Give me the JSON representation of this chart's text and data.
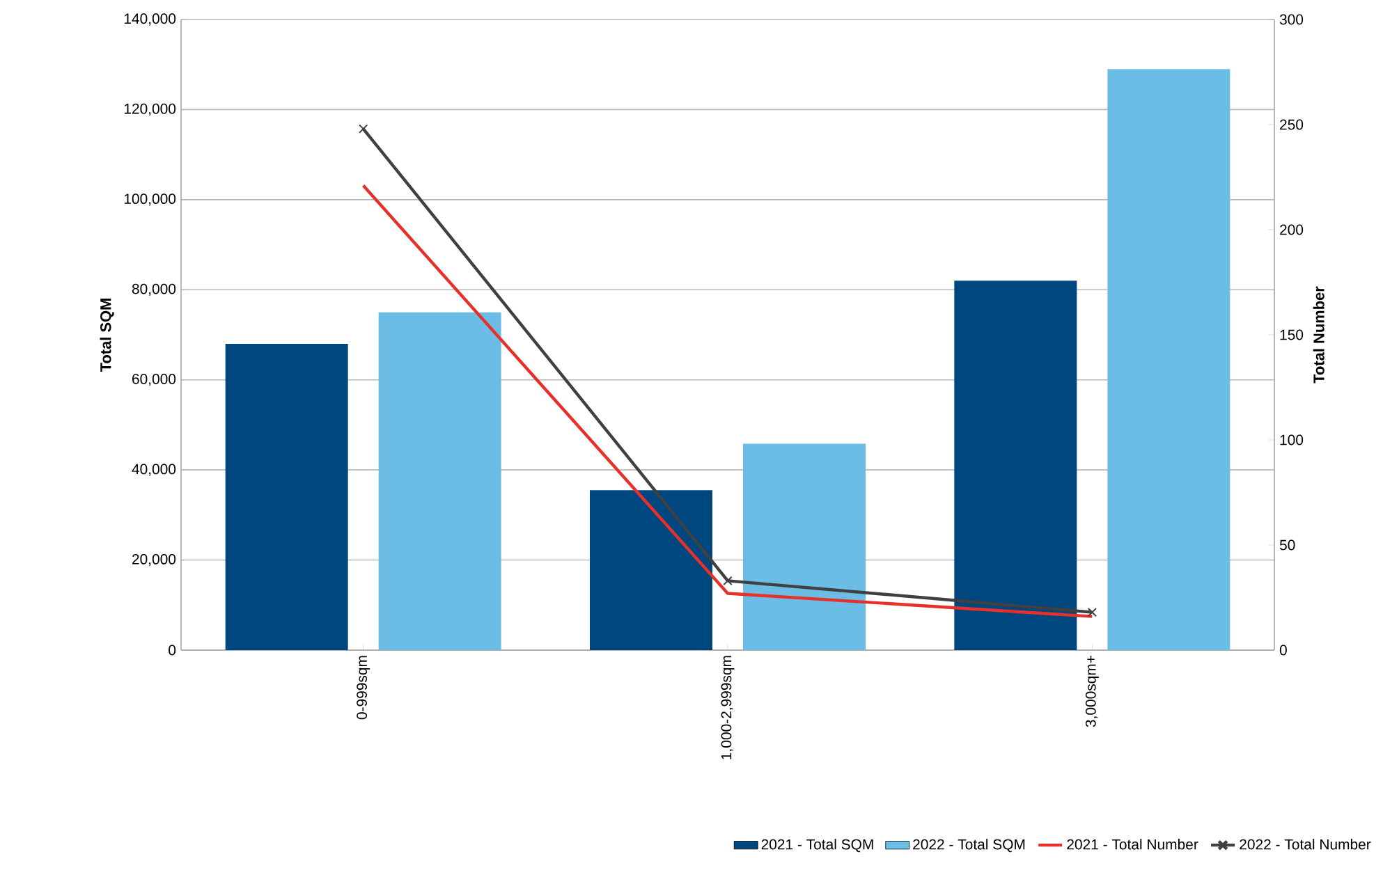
{
  "chart_data": {
    "type": "bar",
    "ylabel": "Total SQM",
    "y2label": "Total Number",
    "categories": [
      "0-999sqm",
      "1,000-2,999sqm",
      "3,000sqm+"
    ],
    "series": [
      {
        "name": "2021 - Total SQM",
        "color": "#00477f",
        "values": [
          68000,
          35500,
          82000
        ]
      },
      {
        "name": "2022 - Total SQM",
        "color": "#6cbde5",
        "values": [
          75000,
          45800,
          129000
        ]
      },
      {
        "name": "2021 - Total Number",
        "type": "line",
        "axis": "y2",
        "color": "#e8302a",
        "marker": "none",
        "values": [
          221,
          27,
          16
        ]
      },
      {
        "name": "2022 - Total Number",
        "type": "line",
        "axis": "y2",
        "color": "#404040",
        "marker": "cross",
        "values": [
          248,
          33,
          18
        ]
      }
    ],
    "ylim": [
      0,
      140000
    ],
    "yticks": [
      {
        "value": 0,
        "label": "0"
      },
      {
        "value": 20000,
        "label": "20,000"
      },
      {
        "value": 40000,
        "label": "40,000"
      },
      {
        "value": 60000,
        "label": "60,000"
      },
      {
        "value": 80000,
        "label": "80,000"
      },
      {
        "value": 100000,
        "label": "100,000"
      },
      {
        "value": 120000,
        "label": "120,000"
      },
      {
        "value": 140000,
        "label": "140,000"
      }
    ],
    "y2lim": [
      0,
      300
    ],
    "y2ticks": [
      0,
      50,
      100,
      150,
      200,
      250,
      300
    ],
    "grid": "y",
    "legend": "bottom"
  }
}
